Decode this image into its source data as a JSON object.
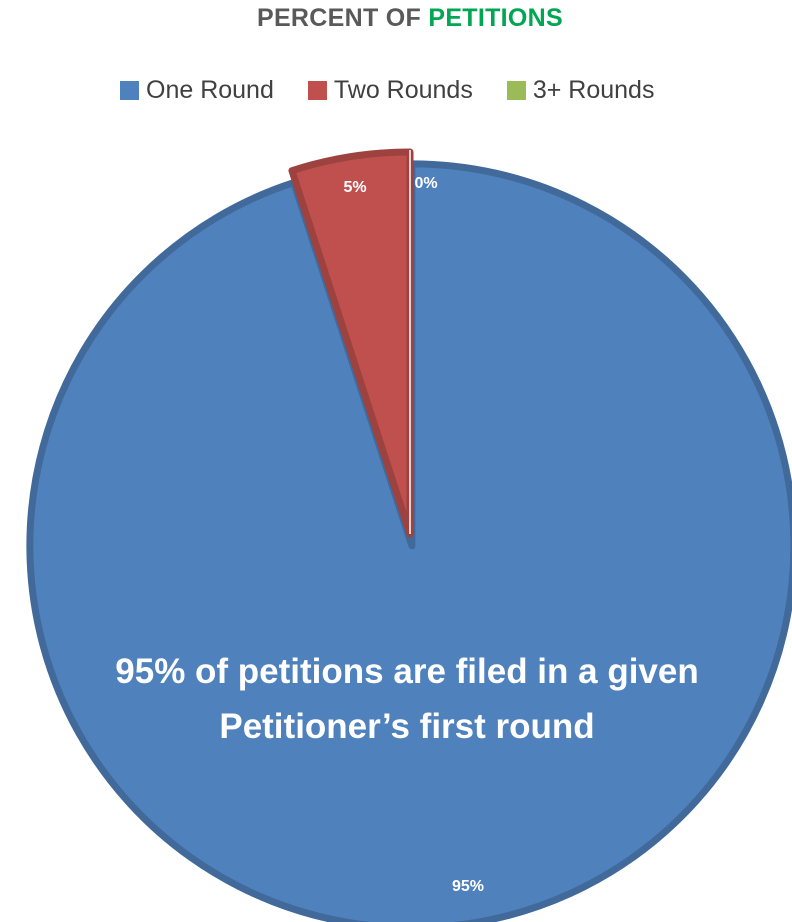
{
  "chart_data": {
    "type": "pie",
    "title_parts": [
      "PERCENT OF ",
      "PETITIONS"
    ],
    "categories": [
      "One Round",
      "Two Rounds",
      "3+ Rounds"
    ],
    "values": [
      95,
      5,
      0
    ],
    "data_labels": [
      "95%",
      "5%",
      "0%"
    ],
    "colors": [
      "#4f81bd",
      "#c0504d",
      "#9bbb59"
    ],
    "title_accent_color": "#00a651",
    "legend_position": "top",
    "annotation": [
      "95% of petitions are filed in a given",
      "Petitioner’s first round"
    ]
  }
}
